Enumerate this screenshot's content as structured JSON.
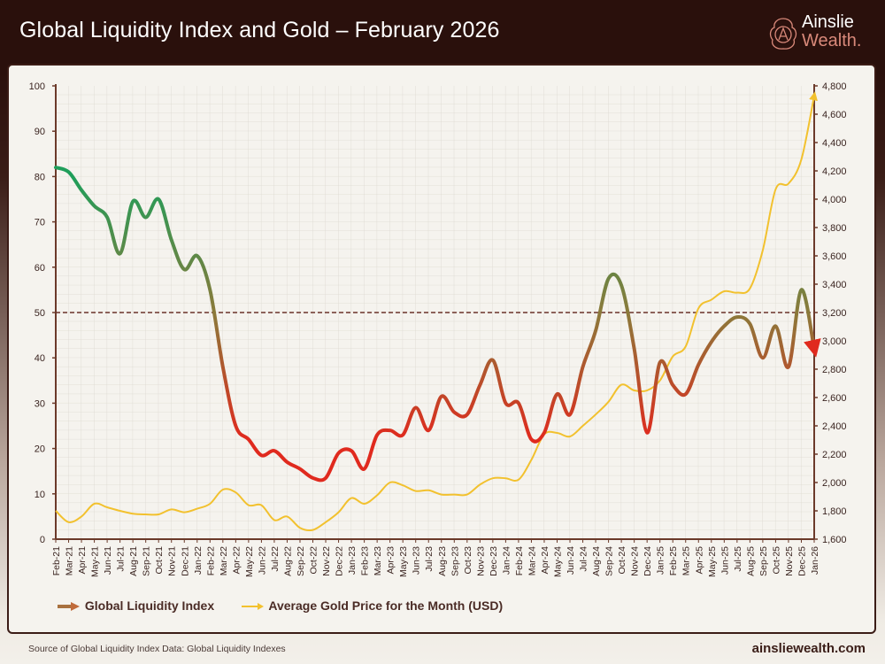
{
  "header": {
    "title": "Global Liquidity Index and Gold – February 2026"
  },
  "logo": {
    "line1": "Ainslie",
    "line2": "Wealth."
  },
  "footer": {
    "source": "Source of Global Liquidity Index Data: Global Liquidity Indexes",
    "site": "ainsliewealth.com"
  },
  "colors": {
    "gli_high": "#1f9e5a",
    "gli_mid": "#8b7a3a",
    "gli_low": "#e02a1e",
    "gold": "#f2c12e",
    "reference_line": "#6b3228"
  },
  "chart_data": {
    "type": "line",
    "title": "Global Liquidity Index and Gold – February 2026",
    "categories": [
      "Feb-21",
      "Mar-21",
      "Apr-21",
      "May-21",
      "Jun-21",
      "Jul-21",
      "Aug-21",
      "Sep-21",
      "Oct-21",
      "Nov-21",
      "Dec-21",
      "Jan-22",
      "Feb-22",
      "Mar-22",
      "Apr-22",
      "May-22",
      "Jun-22",
      "Jul-22",
      "Aug-22",
      "Sep-22",
      "Oct-22",
      "Nov-22",
      "Dec-22",
      "Jan-23",
      "Feb-23",
      "Mar-23",
      "Apr-23",
      "May-23",
      "Jun-23",
      "Jul-23",
      "Aug-23",
      "Sep-23",
      "Oct-23",
      "Nov-23",
      "Dec-23",
      "Jan-24",
      "Feb-24",
      "Mar-24",
      "Apr-24",
      "May-24",
      "Jun-24",
      "Jul-24",
      "Aug-24",
      "Sep-24",
      "Oct-24",
      "Nov-24",
      "Dec-24",
      "Jan-25",
      "Feb-25",
      "Mar-25",
      "Apr-25",
      "May-25",
      "Jun-25",
      "Jul-25",
      "Aug-25",
      "Sep-25",
      "Oct-25",
      "Nov-25",
      "Dec-25",
      "Jan-26"
    ],
    "series": [
      {
        "name": "Global Liquidity Index",
        "axis": "left",
        "values": [
          82,
          81,
          77,
          73.5,
          71,
          63,
          74.5,
          71,
          75,
          66,
          59.5,
          62.5,
          55,
          38,
          25,
          22,
          18.5,
          19.5,
          17,
          15.5,
          13.5,
          13.5,
          19,
          19.5,
          15.5,
          23,
          24,
          23,
          29,
          24,
          31.5,
          28,
          27.5,
          34,
          39.5,
          30,
          30,
          22,
          23.5,
          32,
          27.5,
          38,
          46,
          57.5,
          56,
          42,
          23.5,
          39,
          34,
          32,
          38.5,
          43.5,
          47,
          49,
          47.5,
          40,
          47,
          38,
          55,
          42
        ]
      },
      {
        "name": "Average Gold Price for the Month (USD)",
        "axis": "right",
        "values": [
          1800,
          1720,
          1760,
          1850,
          1825,
          1800,
          1780,
          1775,
          1775,
          1810,
          1790,
          1815,
          1850,
          1950,
          1930,
          1840,
          1840,
          1735,
          1760,
          1680,
          1665,
          1720,
          1790,
          1890,
          1850,
          1910,
          2000,
          1980,
          1940,
          1945,
          1915,
          1915,
          1915,
          1985,
          2030,
          2030,
          2020,
          2160,
          2340,
          2350,
          2325,
          2400,
          2480,
          2570,
          2690,
          2650,
          2650,
          2720,
          2890,
          2960,
          3230,
          3290,
          3350,
          3340,
          3370,
          3640,
          4070,
          4110,
          4280,
          4730
        ]
      }
    ],
    "reference_line": 50,
    "ylim_left": [
      0,
      100
    ],
    "yticks_left": [
      "0",
      "10",
      "20",
      "30",
      "40",
      "50",
      "60",
      "70",
      "80",
      "90",
      "100"
    ],
    "ylim_right": [
      1600,
      4800
    ],
    "yticks_right": [
      "1,600",
      "1,800",
      "2,000",
      "2,200",
      "2,400",
      "2,600",
      "2,800",
      "3,000",
      "3,200",
      "3,400",
      "3,600",
      "3,800",
      "4,000",
      "4,200",
      "4,400",
      "4,600",
      "4,800"
    ],
    "grid": true,
    "legend_position": "bottom-left"
  }
}
